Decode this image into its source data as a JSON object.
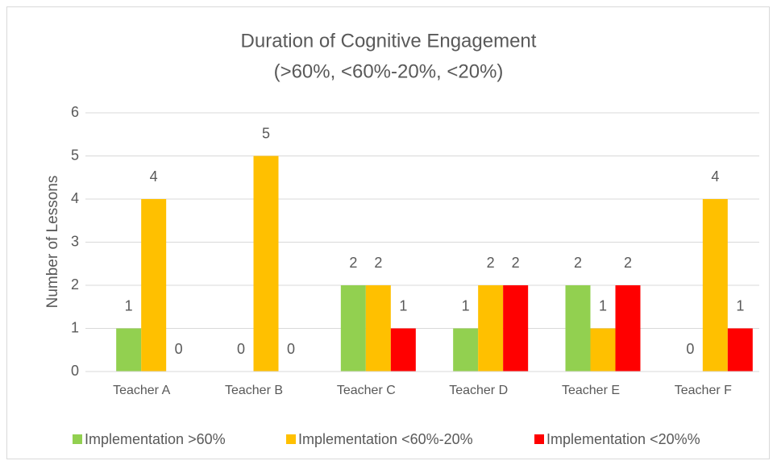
{
  "chart_data": {
    "type": "bar",
    "title": "Duration of Cognitive Engagement",
    "subtitle": "(>60%, <60%-20%, <20%)",
    "y_label": "Number of Lessons",
    "categories": [
      "Teacher A",
      "Teacher B",
      "Teacher C",
      "Teacher D",
      "Teacher E",
      "Teacher F"
    ],
    "series": [
      {
        "name": "Implementation >60%",
        "color": "#92d050",
        "values": [
          1,
          0,
          2,
          1,
          2,
          0
        ]
      },
      {
        "name": "Implementation <60%-20%",
        "color": "#ffc000",
        "values": [
          4,
          5,
          2,
          2,
          1,
          4
        ]
      },
      {
        "name": "Implementation <20%%",
        "color": "#ff0000",
        "values": [
          0,
          0,
          1,
          2,
          2,
          1
        ]
      }
    ],
    "ylim": [
      0,
      6
    ],
    "yticks": [
      0,
      1,
      2,
      3,
      4,
      5,
      6
    ],
    "grid": true,
    "legend": "bottom"
  }
}
